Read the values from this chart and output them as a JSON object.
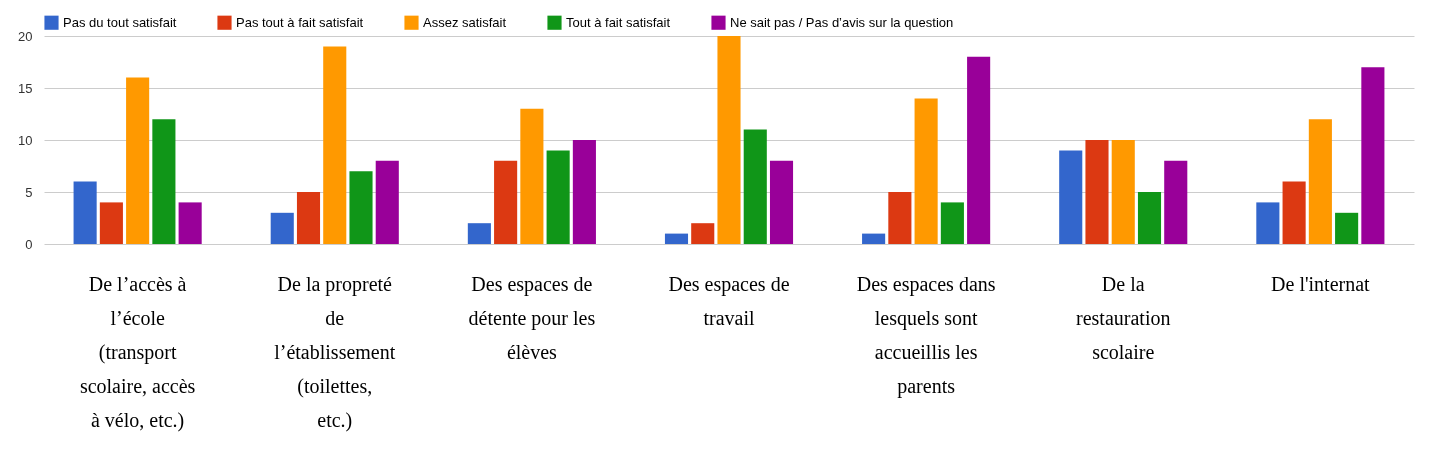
{
  "chart_data": {
    "type": "bar",
    "categories": [
      "De l’accès à l’école (transport scolaire, accès à vélo, etc.)",
      "De la propreté de l’établissement (toilettes, etc.)",
      "Des espaces de détente pour les élèves",
      "Des espaces de travail",
      "Des espaces dans lesquels sont accueillis les parents",
      "De la restauration scolaire",
      "De l'internat"
    ],
    "series": [
      {
        "name": "Pas du tout satisfait",
        "color": "#3366cc",
        "values": [
          6,
          3,
          2,
          1,
          1,
          9,
          4
        ]
      },
      {
        "name": "Pas tout à fait satisfait",
        "color": "#dc3912",
        "values": [
          4,
          5,
          8,
          2,
          5,
          10,
          6
        ]
      },
      {
        "name": "Assez satisfait",
        "color": "#ff9900",
        "values": [
          16,
          19,
          13,
          20,
          14,
          10,
          12
        ]
      },
      {
        "name": "Tout à fait satisfait",
        "color": "#109618",
        "values": [
          12,
          7,
          9,
          11,
          4,
          5,
          3
        ]
      },
      {
        "name": "Ne sait pas / Pas d’avis sur la question",
        "color": "#990099",
        "values": [
          4,
          8,
          10,
          8,
          18,
          8,
          17
        ]
      }
    ],
    "ylim": [
      0,
      20
    ],
    "yticks": [
      0,
      5,
      10,
      15,
      20
    ],
    "grid": "y",
    "legend": "top left"
  }
}
